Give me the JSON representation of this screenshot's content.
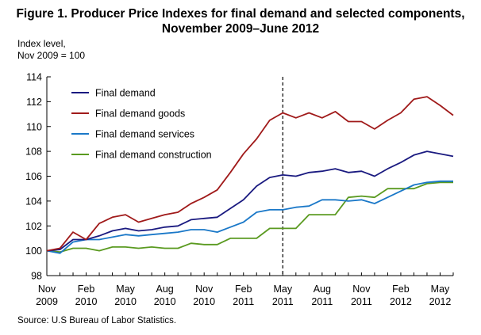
{
  "figure": {
    "title_line1": "Figure 1. Producer Price Indexes for final demand and selected components,",
    "title_line2": "November 2009–June 2012",
    "ylabel_line1": "Index level,",
    "ylabel_line2": "Nov 2009 = 100",
    "source": "Source:  U.S Bureau of Labor Statistics."
  },
  "chart_data": {
    "type": "line",
    "title": "Figure 1. Producer Price Indexes for final demand and selected components, November 2009–June 2012",
    "ylabel": "Index level, Nov 2009 = 100",
    "xlabel": "",
    "ylim": [
      98,
      114
    ],
    "yticks": [
      98,
      100,
      102,
      104,
      106,
      108,
      110,
      112,
      114
    ],
    "x": [
      "2009-11",
      "2009-12",
      "2010-01",
      "2010-02",
      "2010-03",
      "2010-04",
      "2010-05",
      "2010-06",
      "2010-07",
      "2010-08",
      "2010-09",
      "2010-10",
      "2010-11",
      "2010-12",
      "2011-01",
      "2011-02",
      "2011-03",
      "2011-04",
      "2011-05",
      "2011-06",
      "2011-07",
      "2011-08",
      "2011-09",
      "2011-10",
      "2011-11",
      "2011-12",
      "2012-01",
      "2012-02",
      "2012-03",
      "2012-04",
      "2012-05",
      "2012-06"
    ],
    "xticks": [
      {
        "month": "Nov",
        "year": "2009",
        "index": 0
      },
      {
        "month": "Feb",
        "year": "2010",
        "index": 3
      },
      {
        "month": "May",
        "year": "2010",
        "index": 6
      },
      {
        "month": "Aug",
        "year": "2010",
        "index": 9
      },
      {
        "month": "Nov",
        "year": "2010",
        "index": 12
      },
      {
        "month": "Feb",
        "year": "2011",
        "index": 15
      },
      {
        "month": "May",
        "year": "2011",
        "index": 18
      },
      {
        "month": "Aug",
        "year": "2011",
        "index": 21
      },
      {
        "month": "Nov",
        "year": "2011",
        "index": 24
      },
      {
        "month": "Feb",
        "year": "2012",
        "index": 27
      },
      {
        "month": "May",
        "year": "2012",
        "index": 30
      }
    ],
    "vertical_marker": {
      "x": "2011-05",
      "style": "dashed"
    },
    "legend_position": "top-left",
    "grid": false,
    "series": [
      {
        "name": "Final demand",
        "color": "#1a1a80",
        "values": [
          100.0,
          100.1,
          100.9,
          100.9,
          101.2,
          101.6,
          101.8,
          101.6,
          101.7,
          101.9,
          102.0,
          102.5,
          102.6,
          102.7,
          103.4,
          104.1,
          105.2,
          105.9,
          106.1,
          106.0,
          106.3,
          106.4,
          106.6,
          106.3,
          106.4,
          106.0,
          106.6,
          107.1,
          107.7,
          108.0,
          107.8,
          107.6
        ]
      },
      {
        "name": "Final demand goods",
        "color": "#a01a1a",
        "values": [
          100.0,
          100.2,
          101.5,
          100.9,
          102.2,
          102.7,
          102.9,
          102.3,
          102.6,
          102.9,
          103.1,
          103.8,
          104.3,
          104.9,
          106.3,
          107.8,
          109.0,
          110.5,
          111.1,
          110.7,
          111.1,
          110.7,
          111.2,
          110.4,
          110.4,
          109.8,
          110.5,
          111.1,
          112.2,
          112.4,
          111.7,
          110.9
        ]
      },
      {
        "name": "Final demand services",
        "color": "#1a78c8",
        "values": [
          100.0,
          99.8,
          100.7,
          100.9,
          100.9,
          101.1,
          101.3,
          101.2,
          101.3,
          101.4,
          101.5,
          101.7,
          101.7,
          101.5,
          101.9,
          102.3,
          103.1,
          103.3,
          103.3,
          103.5,
          103.6,
          104.1,
          104.1,
          104.0,
          104.1,
          103.8,
          104.3,
          104.8,
          105.3,
          105.5,
          105.6,
          105.6
        ]
      },
      {
        "name": "Final demand construction",
        "color": "#5a9a20",
        "values": [
          100.0,
          99.9,
          100.2,
          100.2,
          100.0,
          100.3,
          100.3,
          100.2,
          100.3,
          100.2,
          100.2,
          100.6,
          100.5,
          100.5,
          101.0,
          101.0,
          101.0,
          101.8,
          101.8,
          101.8,
          102.9,
          102.9,
          102.9,
          104.3,
          104.4,
          104.3,
          105.0,
          105.0,
          105.0,
          105.4,
          105.5,
          105.5
        ]
      }
    ]
  }
}
